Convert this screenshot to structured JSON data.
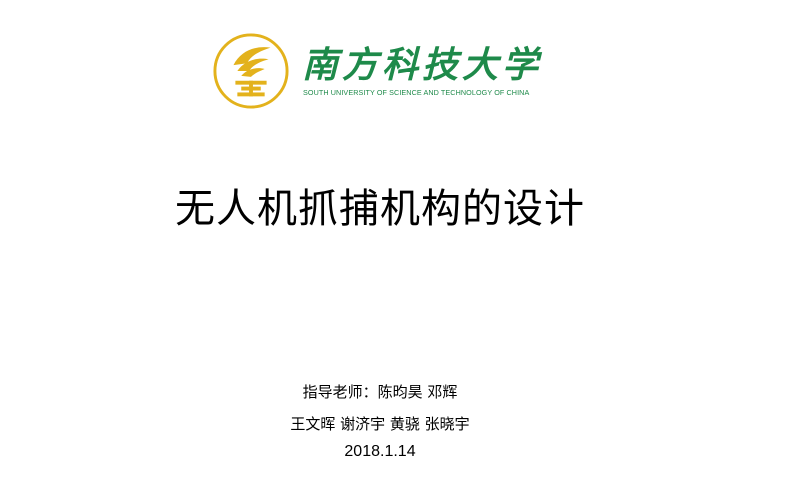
{
  "logo": {
    "name_cn": "南方科技大学",
    "name_en": "SOUTH UNIVERSITY OF SCIENCE AND TECHNOLOGY OF CHINA",
    "emblem_icon": "torch-emblem-icon",
    "brand_color": "#1e8a4a",
    "emblem_color": "#e3b21c"
  },
  "title": "无人机抓捕机构的设计",
  "info": {
    "advisors": "指导老师：陈昀昊 邓辉",
    "members": "王文晖 谢济宇 黄骁 张晓宇",
    "date": "2018.1.14"
  }
}
